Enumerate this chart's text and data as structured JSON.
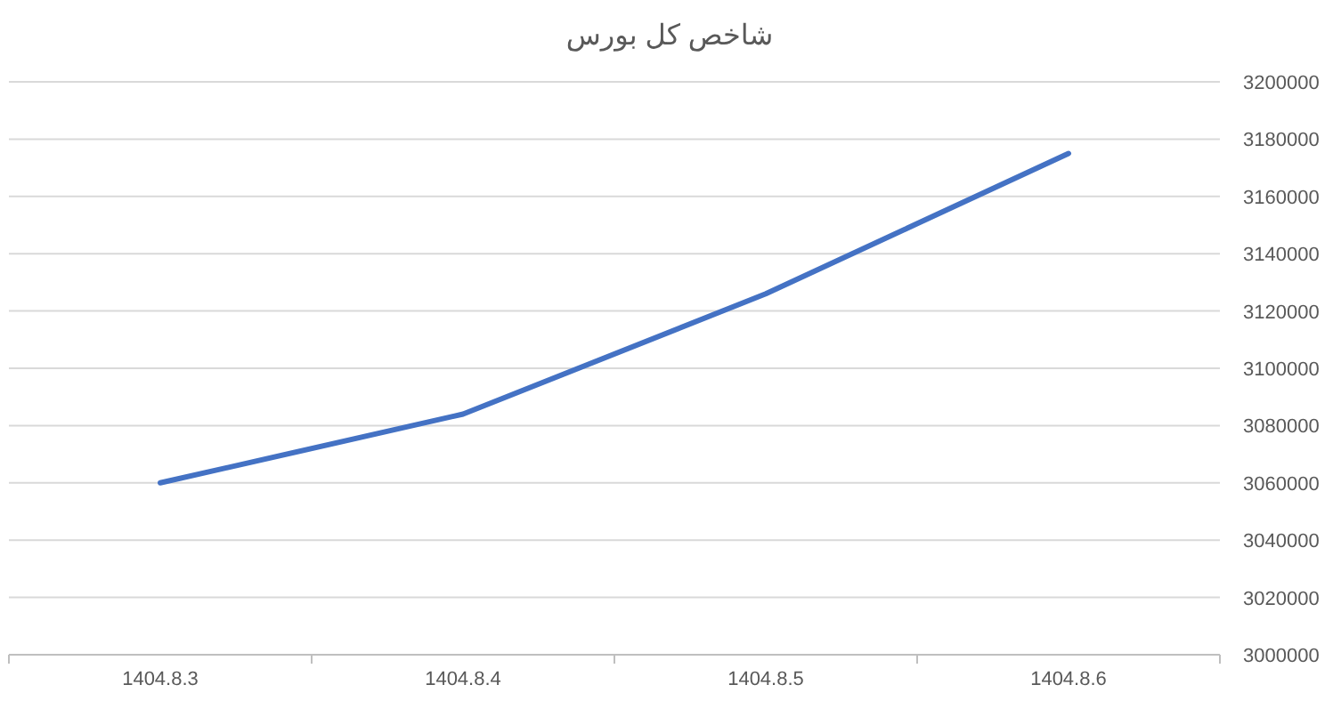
{
  "chart_data": {
    "type": "line",
    "title": "شاخص کل بورس",
    "categories": [
      "1404.8.3",
      "1404.8.4",
      "1404.8.5",
      "1404.8.6"
    ],
    "series": [
      {
        "color": "#4472c4",
        "values": [
          3060000,
          3084000,
          3126000,
          3175000
        ]
      }
    ],
    "ylim": [
      3000000,
      3200000
    ],
    "yticks": [
      3000000,
      3020000,
      3040000,
      3060000,
      3080000,
      3100000,
      3120000,
      3140000,
      3160000,
      3180000,
      3200000
    ],
    "grid": "y",
    "marker": "none",
    "line_style": "solid"
  }
}
